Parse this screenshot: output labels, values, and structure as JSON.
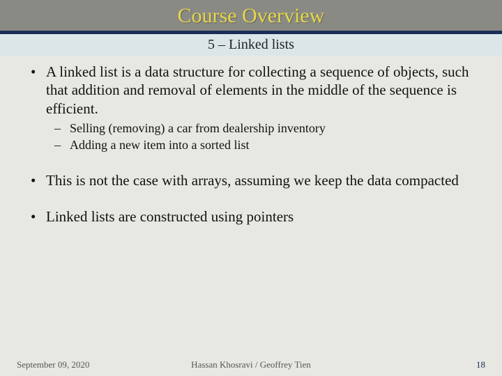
{
  "title": "Course Overview",
  "subtitle": "5 – Linked lists",
  "colors": {
    "title_bar_bg": "#8a8a85",
    "title_text": "#e6d84a",
    "title_underline": "#1b2d57",
    "subtitle_bg": "#dce6e8",
    "page_bg": "#e8e8e3",
    "body_text": "#111111",
    "footer_text": "#555555",
    "page_number": "#1b2d57"
  },
  "typography": {
    "title_fontsize": 30,
    "subtitle_fontsize": 20,
    "body_fontsize": 21,
    "sub_bullet_fontsize": 18,
    "footer_fontsize": 13,
    "font_family": "Times New Roman"
  },
  "bullets": [
    {
      "text": "A linked list is a data structure for collecting a sequence of objects, such that addition and removal of elements in the middle of the sequence is efficient.",
      "sub": [
        "Selling (removing) a car from dealership inventory",
        "Adding a new item into a sorted list"
      ]
    },
    {
      "text": "This is not the case with arrays, assuming we keep the data compacted",
      "sub": []
    },
    {
      "text": "Linked lists are constructed using pointers",
      "sub": []
    }
  ],
  "footer": {
    "date": "September 09, 2020",
    "authors": "Hassan Khosravi / Geoffrey Tien",
    "page": "18"
  }
}
